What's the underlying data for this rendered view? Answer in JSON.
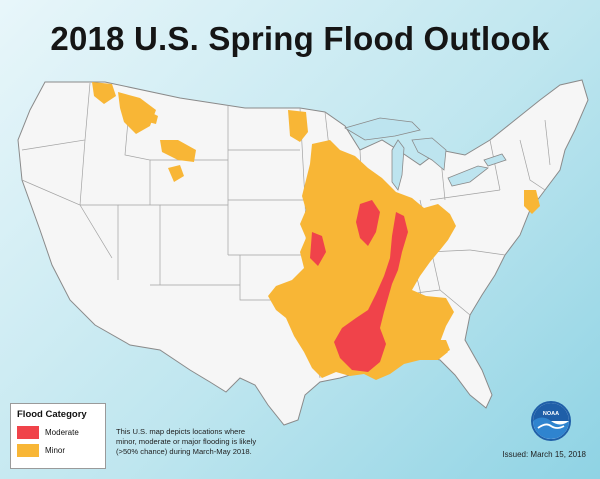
{
  "title": "2018 U.S. Spring Flood Outlook",
  "legend": {
    "title": "Flood Category",
    "items": [
      {
        "label": "Moderate",
        "color": "#f0434a"
      },
      {
        "label": "Minor",
        "color": "#f8b636"
      }
    ]
  },
  "caption": {
    "lines": [
      "This U.S. map depicts locations where",
      "minor, moderate or major flooding is likely",
      "(>50% chance) during March-May 2018."
    ]
  },
  "issued": "Issued: March 15, 2018",
  "logo": {
    "text": "NOAA",
    "icon": "noaa-logo-icon"
  },
  "colors": {
    "land": "#f5f5f5",
    "water": "#b9e3ec",
    "lakes": "#bde4ef",
    "border": "#8c8c8c"
  }
}
